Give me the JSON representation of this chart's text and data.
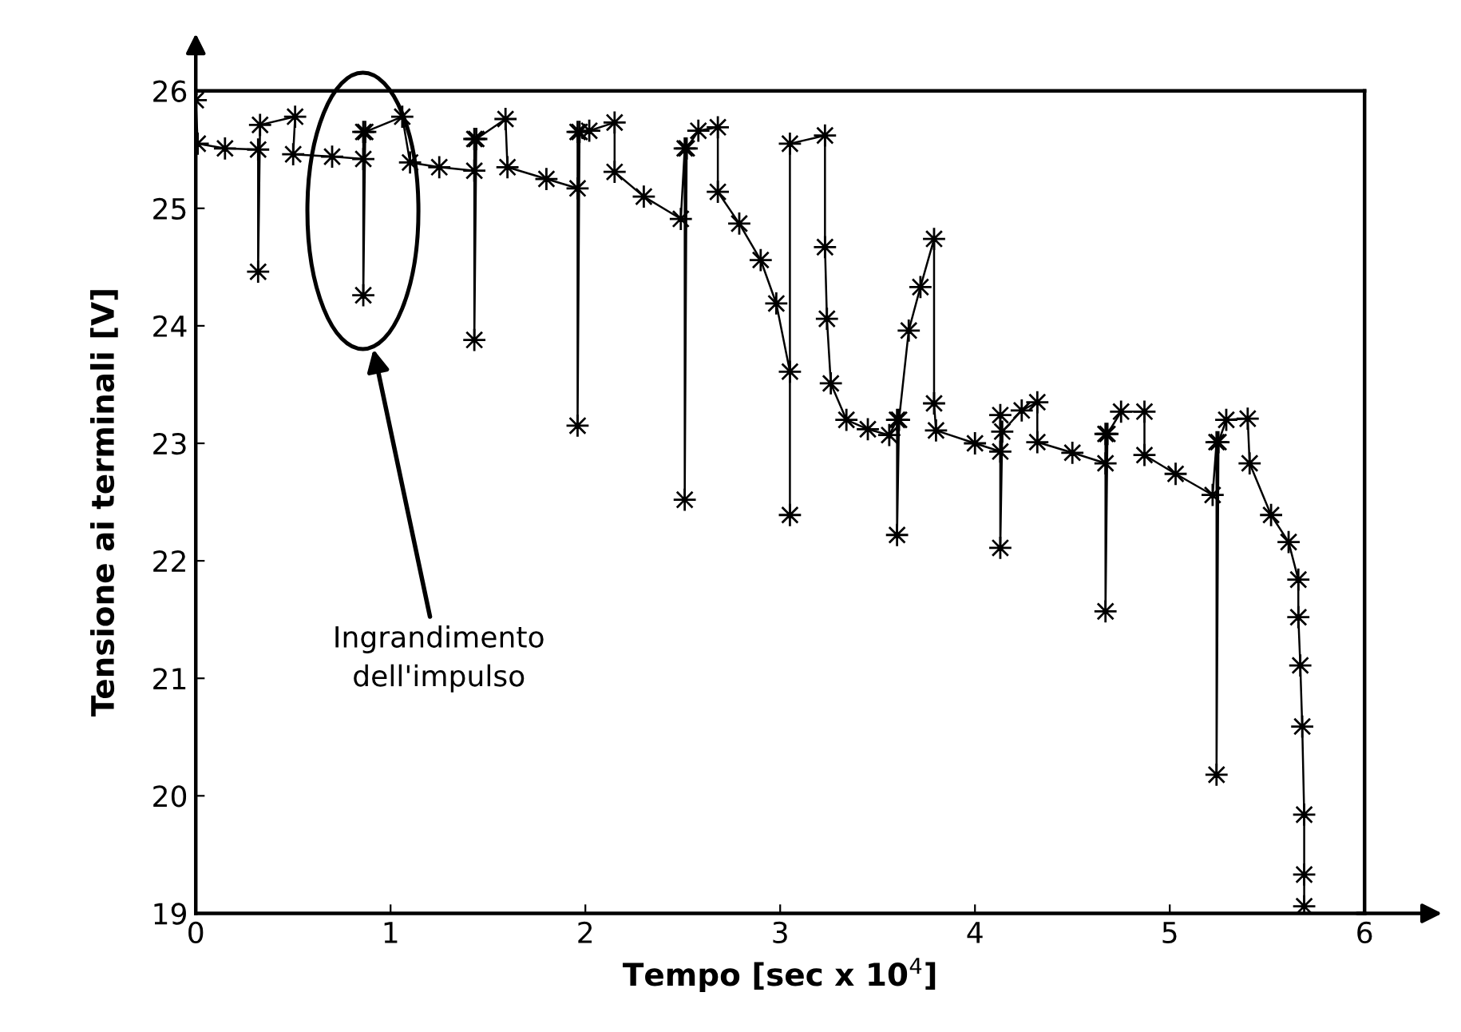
{
  "chart_data": {
    "type": "line",
    "xlabel": "Tempo [sec x 10$^{4}$]",
    "ylabel": "Tensione ai terminali [V]",
    "xlim": [
      0,
      6
    ],
    "ylim": [
      19,
      26
    ],
    "xticks": [
      0,
      1,
      2,
      3,
      4,
      5,
      6
    ],
    "yticks": [
      19,
      20,
      21,
      22,
      23,
      24,
      25,
      26
    ],
    "grid": false,
    "legend": false,
    "marker": "star",
    "line_style": "solid",
    "annotations": [
      "Ingrandimento\ndell'impulso"
    ],
    "series": [
      {
        "color": "#000000",
        "x": [
          0.0,
          0.01,
          0.15,
          0.32,
          0.32,
          0.33,
          0.51,
          0.5,
          0.7,
          0.86,
          0.86,
          0.86,
          0.87,
          1.06,
          1.1,
          1.25,
          1.43,
          1.43,
          1.43,
          1.44,
          1.59,
          1.6,
          1.8,
          1.96,
          1.96,
          1.96,
          1.97,
          2.02,
          2.15,
          2.15,
          2.3,
          2.49,
          2.51,
          2.51,
          2.52,
          2.58,
          2.68,
          2.68,
          2.79,
          2.9,
          2.98,
          3.05,
          3.05,
          3.05,
          3.23,
          3.23,
          3.24,
          3.26,
          3.34,
          3.45,
          3.56,
          3.6,
          3.6,
          3.61,
          3.66,
          3.72,
          3.79,
          3.79,
          3.8,
          4.0,
          4.13,
          4.13,
          4.13,
          4.14,
          4.24,
          4.32,
          4.32,
          4.5,
          4.67,
          4.67,
          4.67,
          4.68,
          4.75,
          4.87,
          4.87,
          5.03,
          5.22,
          5.24,
          5.24,
          5.25,
          5.29,
          5.4,
          5.41,
          5.52,
          5.61,
          5.66,
          5.66,
          5.67,
          5.68,
          5.69,
          5.69,
          5.69
        ],
        "values": [
          25.92,
          25.55,
          25.51,
          25.5,
          24.46,
          25.71,
          25.78,
          25.46,
          25.44,
          25.42,
          25.65,
          24.26,
          25.65,
          25.78,
          25.39,
          25.35,
          25.32,
          25.59,
          23.88,
          25.59,
          25.76,
          25.35,
          25.25,
          25.17,
          25.65,
          23.15,
          25.65,
          25.66,
          25.73,
          25.31,
          25.1,
          24.91,
          25.51,
          22.52,
          25.51,
          25.66,
          25.69,
          25.14,
          24.87,
          24.56,
          24.19,
          23.61,
          22.39,
          25.55,
          25.62,
          24.67,
          24.06,
          23.51,
          23.2,
          23.12,
          23.07,
          23.2,
          22.22,
          23.2,
          23.96,
          24.33,
          24.74,
          23.34,
          23.11,
          23.0,
          22.93,
          23.24,
          22.11,
          23.1,
          23.28,
          23.35,
          23.01,
          22.92,
          22.83,
          23.08,
          21.57,
          23.08,
          23.27,
          23.27,
          22.9,
          22.74,
          22.56,
          23.01,
          20.18,
          23.01,
          23.2,
          23.21,
          22.83,
          22.39,
          22.16,
          21.84,
          21.52,
          21.11,
          20.59,
          19.84,
          19.33,
          19.06
        ]
      }
    ]
  }
}
